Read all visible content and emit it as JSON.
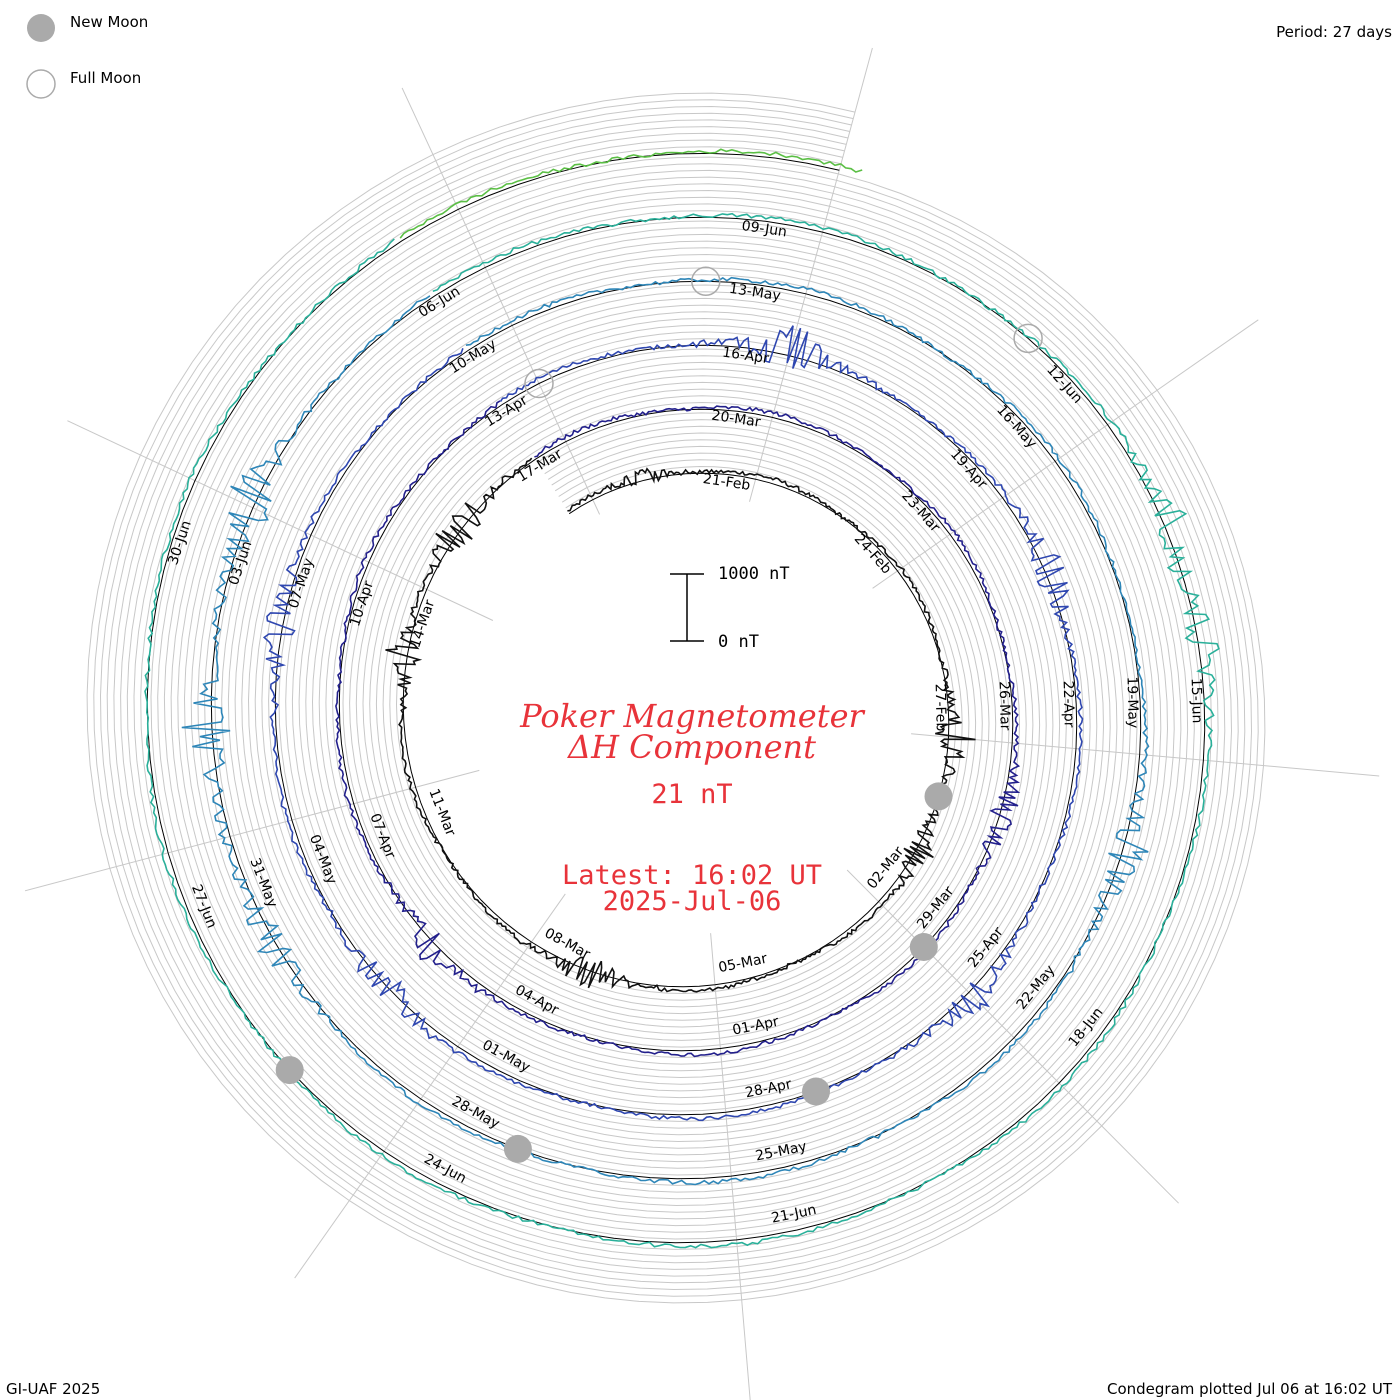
{
  "legend": {
    "new_moon_label": "New Moon",
    "full_moon_label": "Full Moon"
  },
  "period_label": "Period: 27 days",
  "title_line1": "Poker Magnetometer",
  "title_line2": "ΔH Component",
  "current_value": "21 nT",
  "latest_line1": "Latest: 16:02 UT",
  "latest_line2": "2025-Jul-06",
  "footer_left": "GI-UAF 2025",
  "footer_right": "Condegram plotted Jul 06 at 16:02 UT",
  "colors": {
    "title_red": "#e8333a",
    "grid": "#c8c8c8",
    "moon_fill": "#aaaaaa",
    "series": [
      "#111111",
      "#23208c",
      "#2f47b0",
      "#2e86b8",
      "#2ab09a",
      "#5bbf45",
      "#a4b82c",
      "#b89a1c",
      "#b84818",
      "#b81414"
    ]
  },
  "chart_data": {
    "type": "line",
    "chart_style": "spiral condegram",
    "period_days": 27,
    "start_date": "2025-02-18",
    "end_date": "2025-07-06 16:02 UT",
    "scale_bar": {
      "top_label": "1000 nT",
      "bottom_label": "0 nT",
      "range_nT": [
        0,
        1000
      ]
    },
    "date_labels": [
      "21-Feb",
      "24-Feb",
      "27-Feb",
      "02-Mar",
      "05-Mar",
      "08-Mar",
      "11-Mar",
      "14-Mar",
      "17-Mar",
      "20-Mar",
      "23-Mar",
      "26-Mar",
      "29-Mar",
      "01-Apr",
      "04-Apr",
      "07-Apr",
      "10-Apr",
      "13-Apr",
      "16-Apr",
      "19-Apr",
      "22-Apr",
      "25-Apr",
      "28-Apr",
      "01-May",
      "04-May",
      "07-May",
      "10-May",
      "13-May",
      "16-May",
      "19-May",
      "22-May",
      "25-May",
      "28-May",
      "31-May",
      "03-Jun",
      "06-Jun",
      "09-Jun",
      "12-Jun",
      "15-Jun",
      "18-Jun",
      "21-Jun",
      "24-Jun",
      "27-Jun",
      "30-Jun"
    ],
    "new_moons": [
      "2025-02-28",
      "2025-03-29",
      "2025-04-27",
      "2025-05-27",
      "2025-06-25"
    ],
    "full_moons": [
      "2025-04-13",
      "2025-05-12",
      "2025-06-11"
    ],
    "disturbances": [
      {
        "date": "2025-02-19",
        "peak_nT": 150
      },
      {
        "date": "2025-02-27",
        "peak_nT": 350
      },
      {
        "date": "2025-03-01",
        "peak_nT": 300
      },
      {
        "date": "2025-03-07",
        "peak_nT": 400
      },
      {
        "date": "2025-03-13",
        "peak_nT": 300
      },
      {
        "date": "2025-03-15",
        "peak_nT": 400
      },
      {
        "date": "2025-03-27",
        "peak_nT": 300
      },
      {
        "date": "2025-04-05",
        "peak_nT": 300
      },
      {
        "date": "2025-04-16",
        "peak_nT": 450
      },
      {
        "date": "2025-04-20",
        "peak_nT": 350
      },
      {
        "date": "2025-04-25",
        "peak_nT": 300
      },
      {
        "date": "2025-05-02",
        "peak_nT": 350
      },
      {
        "date": "2025-05-06",
        "peak_nT": 350
      },
      {
        "date": "2025-05-20",
        "peak_nT": 450
      },
      {
        "date": "2025-05-30",
        "peak_nT": 400
      },
      {
        "date": "2025-06-01",
        "peak_nT": 450
      },
      {
        "date": "2025-06-03",
        "peak_nT": 500
      },
      {
        "date": "2025-06-13",
        "peak_nT": 350
      },
      {
        "date": "2025-06-14",
        "peak_nT": 300
      }
    ]
  }
}
